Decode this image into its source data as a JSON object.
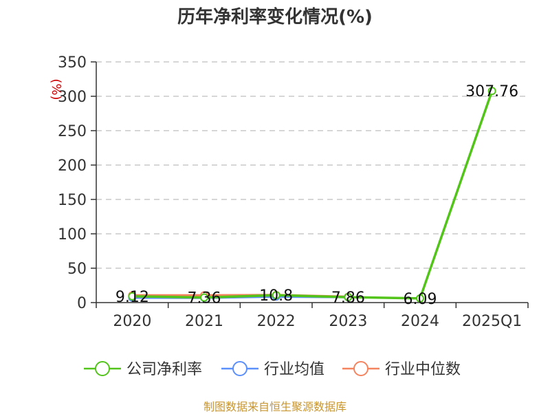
{
  "title": "历年净利率变化情况(%)",
  "source": "制图数据来自恒生聚源数据库",
  "chart_data": {
    "type": "line",
    "title": "历年净利率变化情况(%)",
    "ylabel": "(%)",
    "xlabel": "",
    "categories": [
      "2020",
      "2021",
      "2022",
      "2023",
      "2024",
      "2025Q1"
    ],
    "ylim": [
      0,
      350
    ],
    "yticks": [
      0,
      50,
      100,
      150,
      200,
      250,
      300,
      350
    ],
    "grid": true,
    "legend_position": "bottom",
    "series": [
      {
        "name": "公司净利率",
        "color": "#52c41a",
        "values": [
          9.12,
          7.36,
          10.8,
          7.86,
          6.09,
          307.76
        ],
        "labels": [
          "9.12",
          "7.36",
          "10.8",
          "7.86",
          "6.09",
          "307.76"
        ]
      },
      {
        "name": "行业均值",
        "color": "#5b8ff9",
        "values": [
          7.2,
          7.0,
          8.8,
          8.0,
          null,
          null
        ]
      },
      {
        "name": "行业中位数",
        "color": "#f4845f",
        "values": [
          10.5,
          10.5,
          11.0,
          8.5,
          null,
          null
        ]
      }
    ]
  }
}
